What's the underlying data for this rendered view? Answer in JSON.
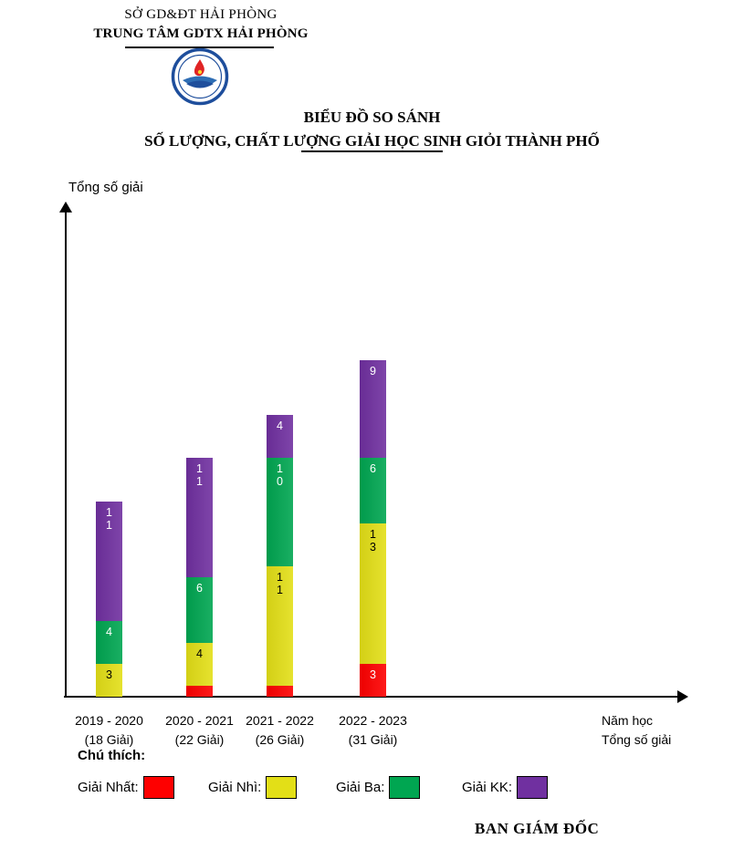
{
  "header": {
    "org1": "SỞ GD&ĐT HẢI PHÒNG",
    "org2": "TRUNG TÂM GDTX HẢI PHÒNG"
  },
  "title": {
    "line1": "BIỂU ĐỒ SO SÁNH",
    "line2": "SỐ LƯỢNG, CHẤT LƯỢNG GIẢI HỌC SINH GIỎI THÀNH PHỐ"
  },
  "chart_data": {
    "type": "bar",
    "stacked": true,
    "title": "BIỂU ĐỒ SO SÁNH SỐ LƯỢNG, CHẤT LƯỢNG GIẢI HỌC SINH GIỎI THÀNH PHỐ",
    "ylabel": "Tổng số giải",
    "xlabel": "Năm học",
    "xlabel2": "Tổng số giải",
    "grid": false,
    "legend_position": "bottom",
    "categories": [
      "2019 - 2020",
      "2020 - 2021",
      "2021 - 2022",
      "2022 - 2023"
    ],
    "category_totals": [
      "(18 Giải)",
      "(22 Giải)",
      "(26 Giải)",
      "(31 Giải)"
    ],
    "totals_numeric": [
      18,
      22,
      26,
      31
    ],
    "series": [
      {
        "name": "Giải Nhất",
        "color": "#FE0000",
        "values": [
          0,
          1,
          1,
          3
        ]
      },
      {
        "name": "Giải Nhì",
        "color": "#E3DF17",
        "values": [
          3,
          4,
          11,
          13
        ]
      },
      {
        "name": "Giải Ba",
        "color": "#00A651",
        "values": [
          4,
          6,
          10,
          6
        ]
      },
      {
        "name": "Giải KK",
        "color": "#7030A0",
        "values": [
          11,
          11,
          4,
          9
        ]
      }
    ]
  },
  "legend": {
    "title": "Chú thích:",
    "items": [
      {
        "label": "Giải Nhất:",
        "color": "#FE0000"
      },
      {
        "label": "Giải Nhì:",
        "color": "#E3DF17"
      },
      {
        "label": "Giải Ba:",
        "color": "#00A651"
      },
      {
        "label": "Giải KK:",
        "color": "#7030A0"
      }
    ]
  },
  "footer": {
    "signature": "BAN GIÁM ĐỐC"
  }
}
